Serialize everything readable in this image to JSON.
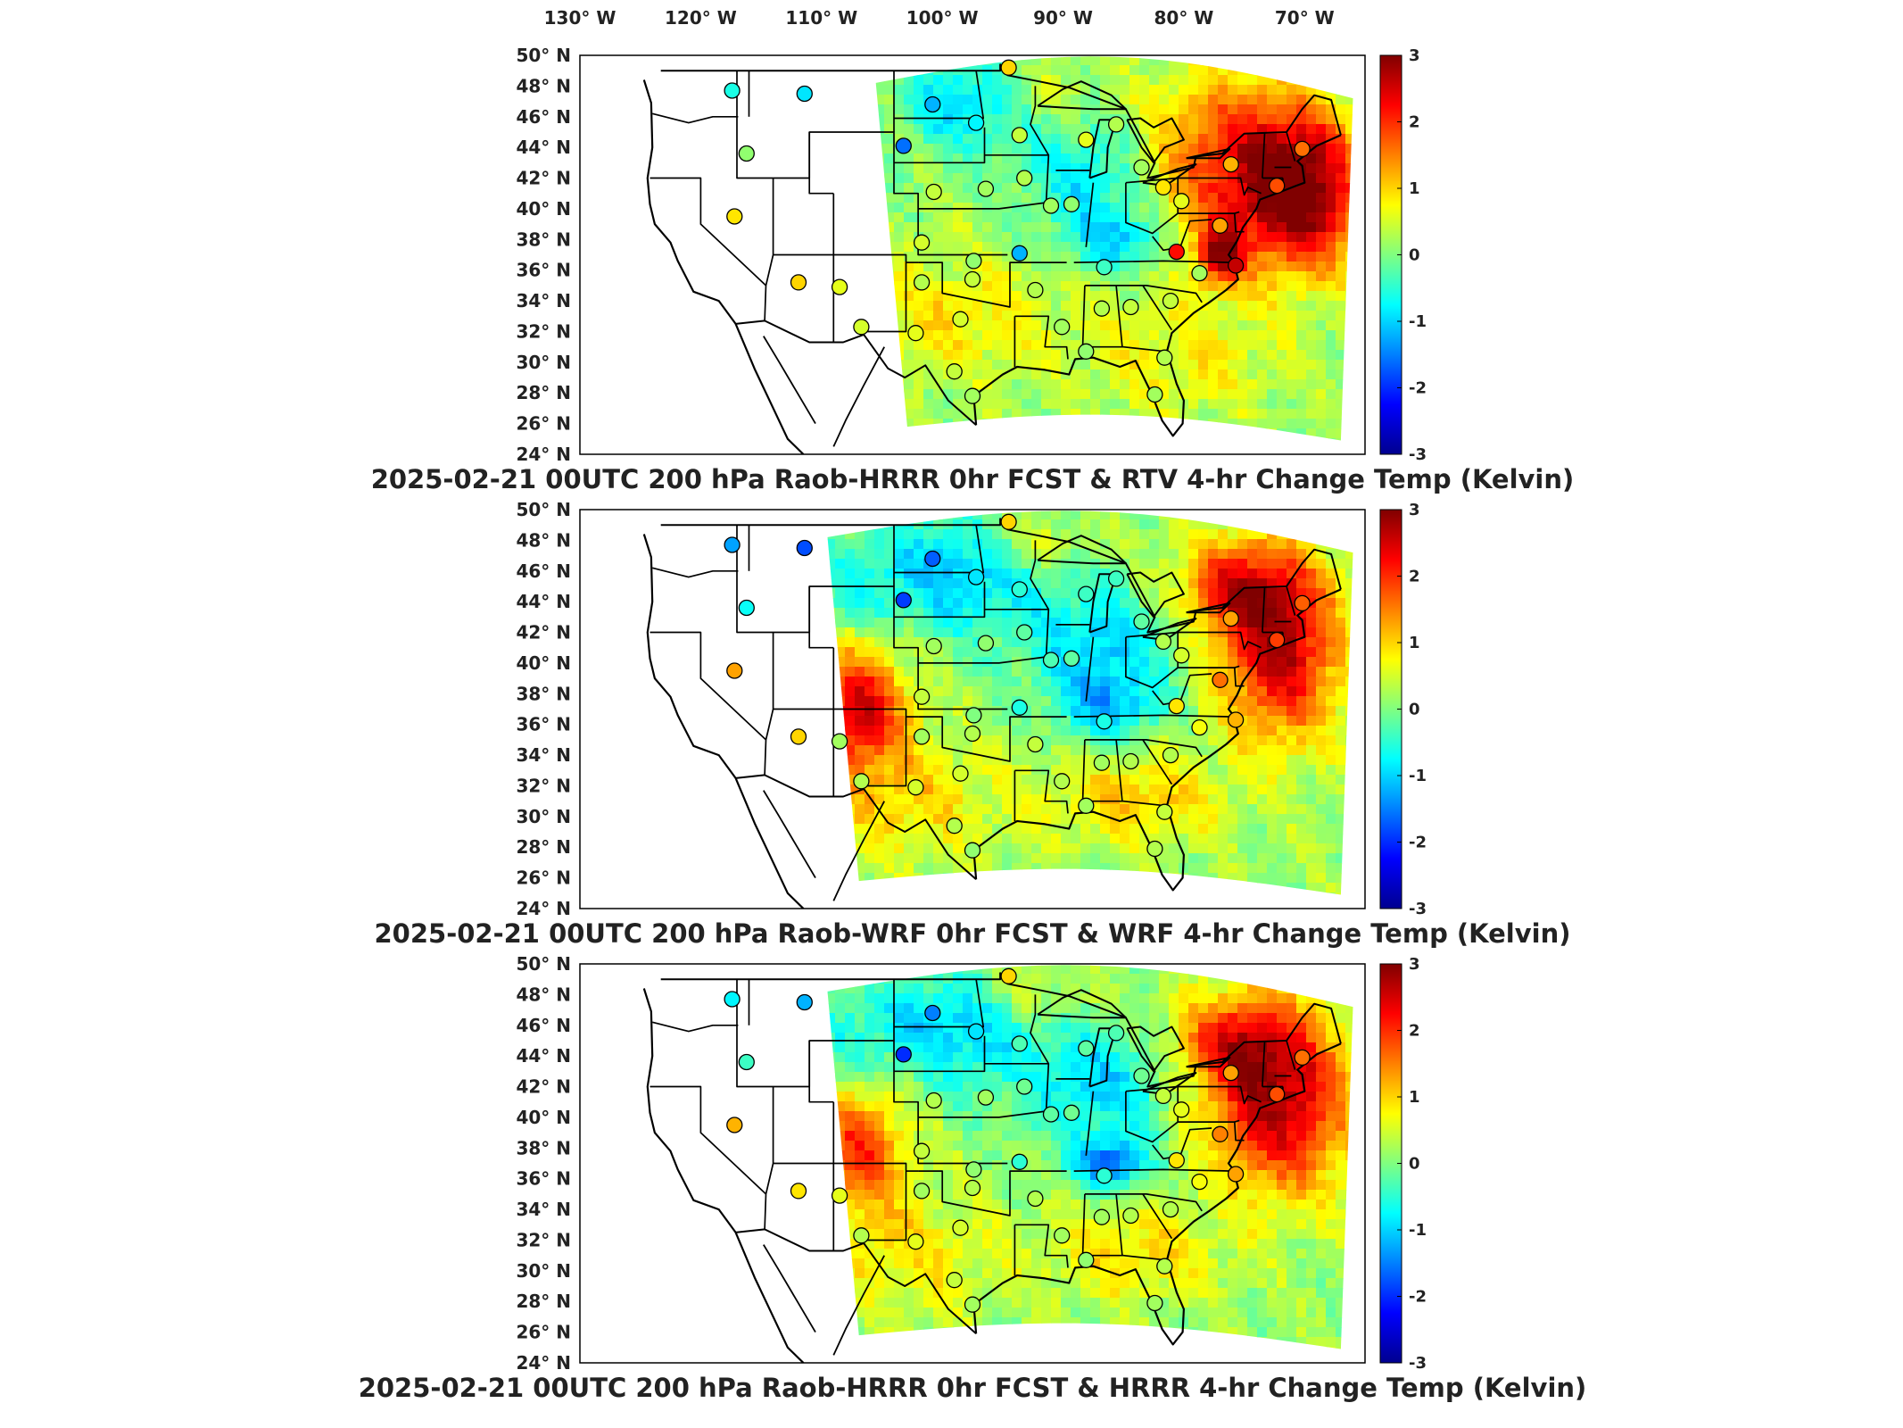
{
  "figure": {
    "lon_ticks": [
      "130",
      "120",
      "110",
      "100",
      "90",
      "80",
      "70"
    ],
    "lon_hemisphere": "W",
    "lat_ticks": [
      "50",
      "48",
      "46",
      "44",
      "42",
      "40",
      "38",
      "36",
      "34",
      "32",
      "30",
      "28",
      "26",
      "24"
    ],
    "lat_hemisphere": "N",
    "colorbar_ticks": [
      "3",
      "2",
      "1",
      "0",
      "-1",
      "-2",
      "-3"
    ],
    "colormap": [
      "#00008f",
      "#0000ff",
      "#0080ff",
      "#00ffff",
      "#80ff80",
      "#ffff00",
      "#ff8000",
      "#ff0000",
      "#800000"
    ],
    "panels": [
      {
        "title": "2025-02-21 00UTC 200 hPa Raob-HRRR 0hr FCST & RTV 4-hr Change Temp (Kelvin)"
      },
      {
        "title": "2025-02-21 00UTC 200 hPa Raob-WRF 0hr FCST & WRF 4-hr Change Temp (Kelvin)"
      },
      {
        "title": "2025-02-21 00UTC 200 hPa Raob-HRRR 0hr FCST & HRRR 4-hr Change Temp (Kelvin)"
      }
    ]
  },
  "chart_data": {
    "type": "heatmap",
    "variable": "Temp (Kelvin)",
    "level": "200 hPa",
    "valid": "2025-02-21 00UTC",
    "color_range": [
      -3,
      3
    ],
    "extent": {
      "lon": [
        -130,
        -65
      ],
      "lat": [
        24,
        50
      ]
    },
    "raob_stations": [
      {
        "lon": -117.4,
        "lat": 47.7,
        "values": [
          -0.6,
          -1.3,
          -0.8
        ]
      },
      {
        "lon": -111.4,
        "lat": 47.5,
        "values": [
          -0.9,
          -1.8,
          -1.2
        ]
      },
      {
        "lon": -116.2,
        "lat": 43.6,
        "values": [
          0.1,
          -0.7,
          -0.4
        ]
      },
      {
        "lon": -117.2,
        "lat": 39.5,
        "values": [
          0.9,
          1.3,
          1.2
        ]
      },
      {
        "lon": -111.9,
        "lat": 35.2,
        "values": [
          1.0,
          1.0,
          0.9
        ]
      },
      {
        "lon": -106.7,
        "lat": 32.3,
        "values": [
          0.5,
          0.3,
          0.3
        ]
      },
      {
        "lon": -108.5,
        "lat": 34.9,
        "values": [
          0.6,
          0.2,
          0.6
        ]
      },
      {
        "lon": -100.8,
        "lat": 46.8,
        "values": [
          -1.2,
          -1.7,
          -1.5
        ]
      },
      {
        "lon": -97.2,
        "lat": 45.6,
        "values": [
          -0.8,
          -0.9,
          -0.9
        ]
      },
      {
        "lon": -103.2,
        "lat": 44.1,
        "values": [
          -1.6,
          -1.9,
          -2.0
        ]
      },
      {
        "lon": -100.7,
        "lat": 41.1,
        "values": [
          0.4,
          0.2,
          0.3
        ]
      },
      {
        "lon": -96.4,
        "lat": 41.3,
        "values": [
          0.2,
          0.1,
          0.2
        ]
      },
      {
        "lon": -101.7,
        "lat": 37.8,
        "values": [
          0.5,
          0.4,
          0.4
        ]
      },
      {
        "lon": -97.4,
        "lat": 36.6,
        "values": [
          0.1,
          0.0,
          0.1
        ]
      },
      {
        "lon": -101.7,
        "lat": 35.2,
        "values": [
          0.3,
          0.2,
          0.2
        ]
      },
      {
        "lon": -97.5,
        "lat": 35.4,
        "values": [
          0.4,
          0.3,
          0.3
        ]
      },
      {
        "lon": -98.5,
        "lat": 32.8,
        "values": [
          0.5,
          0.5,
          0.5
        ]
      },
      {
        "lon": -102.2,
        "lat": 31.9,
        "values": [
          0.6,
          0.5,
          0.6
        ]
      },
      {
        "lon": -99.0,
        "lat": 29.4,
        "values": [
          0.4,
          0.3,
          0.4
        ]
      },
      {
        "lon": -97.5,
        "lat": 27.8,
        "values": [
          0.2,
          0.1,
          0.2
        ]
      },
      {
        "lon": -93.6,
        "lat": 44.8,
        "values": [
          0.4,
          -0.5,
          -0.3
        ]
      },
      {
        "lon": -88.1,
        "lat": 44.5,
        "values": [
          0.6,
          -0.4,
          -0.2
        ]
      },
      {
        "lon": -93.2,
        "lat": 42.0,
        "values": [
          0.3,
          -0.2,
          -0.1
        ]
      },
      {
        "lon": -91.0,
        "lat": 40.2,
        "values": [
          0.2,
          -0.3,
          -0.2
        ]
      },
      {
        "lon": -89.3,
        "lat": 40.3,
        "values": [
          0.1,
          -0.2,
          -0.1
        ]
      },
      {
        "lon": -93.6,
        "lat": 37.1,
        "values": [
          -1.2,
          -0.6,
          -0.5
        ]
      },
      {
        "lon": -92.3,
        "lat": 34.7,
        "values": [
          0.3,
          0.4,
          0.3
        ]
      },
      {
        "lon": -90.1,
        "lat": 32.3,
        "values": [
          0.2,
          0.3,
          0.2
        ]
      },
      {
        "lon": -86.6,
        "lat": 36.2,
        "values": [
          -0.4,
          -0.6,
          -0.5
        ]
      },
      {
        "lon": -86.8,
        "lat": 33.5,
        "values": [
          0.3,
          0.2,
          0.2
        ]
      },
      {
        "lon": -84.4,
        "lat": 33.6,
        "values": [
          0.4,
          0.3,
          0.3
        ]
      },
      {
        "lon": -81.1,
        "lat": 34.0,
        "values": [
          0.4,
          0.3,
          0.3
        ]
      },
      {
        "lon": -83.5,
        "lat": 42.7,
        "values": [
          0.2,
          -0.2,
          -0.1
        ]
      },
      {
        "lon": -85.6,
        "lat": 45.5,
        "values": [
          0.3,
          -0.4,
          -0.3
        ]
      },
      {
        "lon": -81.7,
        "lat": 41.4,
        "values": [
          0.9,
          0.3,
          0.4
        ]
      },
      {
        "lon": -80.2,
        "lat": 40.5,
        "values": [
          0.6,
          0.5,
          0.6
        ]
      },
      {
        "lon": -76.1,
        "lat": 42.9,
        "values": [
          1.2,
          1.3,
          1.3
        ]
      },
      {
        "lon": -80.6,
        "lat": 37.2,
        "values": [
          2.2,
          0.9,
          0.9
        ]
      },
      {
        "lon": -77.0,
        "lat": 38.9,
        "values": [
          1.3,
          1.6,
          1.5
        ]
      },
      {
        "lon": -78.7,
        "lat": 35.8,
        "values": [
          0.2,
          0.7,
          0.7
        ]
      },
      {
        "lon": -75.7,
        "lat": 36.3,
        "values": [
          2.6,
          1.2,
          1.3
        ]
      },
      {
        "lon": -72.3,
        "lat": 41.5,
        "values": [
          1.8,
          1.9,
          1.8
        ]
      },
      {
        "lon": -70.2,
        "lat": 43.9,
        "values": [
          1.6,
          1.7,
          1.6
        ]
      },
      {
        "lon": -81.6,
        "lat": 30.3,
        "values": [
          0.3,
          0.4,
          0.3
        ]
      },
      {
        "lon": -88.1,
        "lat": 30.7,
        "values": [
          0.1,
          0.2,
          0.1
        ]
      },
      {
        "lon": -82.4,
        "lat": 27.9,
        "values": [
          0.2,
          0.3,
          0.2
        ]
      },
      {
        "lon": -94.5,
        "lat": 49.2,
        "values": [
          1.0,
          1.0,
          1.0
        ]
      }
    ]
  }
}
